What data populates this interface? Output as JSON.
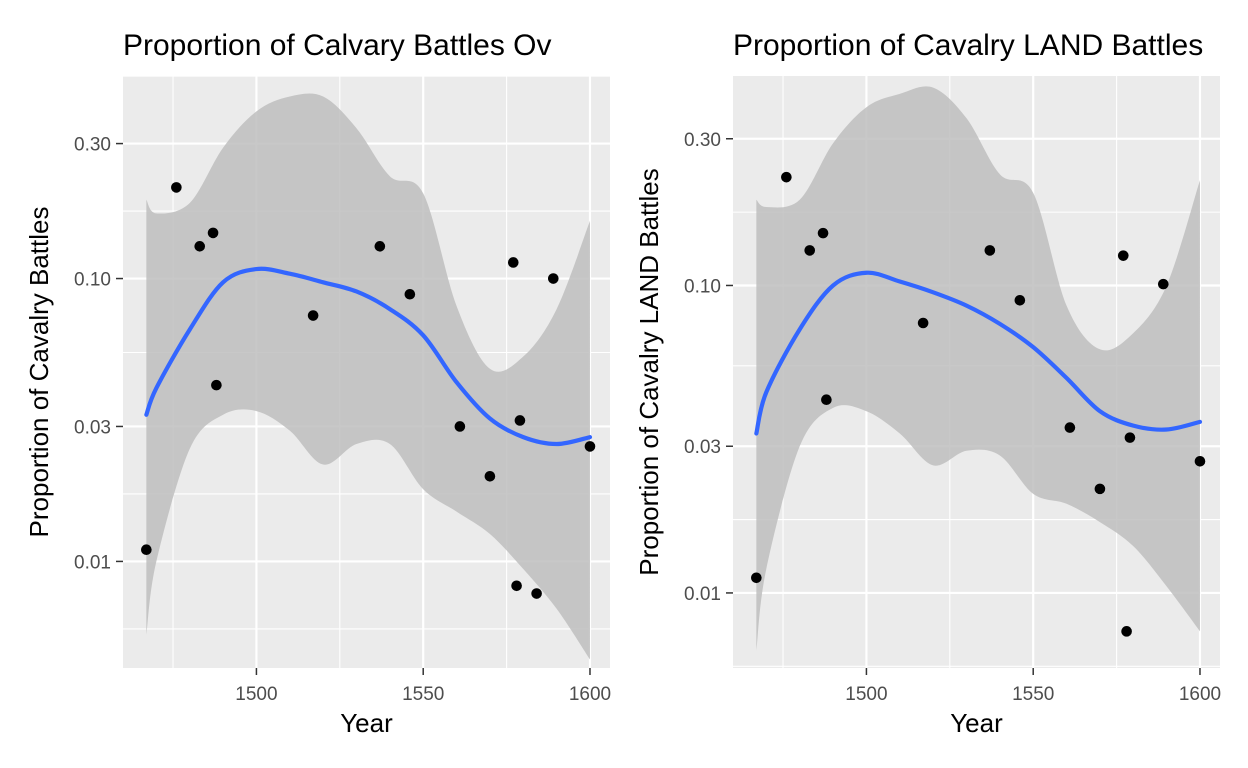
{
  "chart_data": [
    {
      "type": "scatter",
      "title": "Proportion of Calvary Battles Ov",
      "xlabel": "Year",
      "ylabel": "Proportion of Cavalry Battles",
      "x_scale": "linear",
      "y_scale": "log10",
      "xlim": [
        1460,
        1606
      ],
      "ylim": [
        0.0042,
        0.52
      ],
      "x_ticks": [
        1500,
        1550,
        1600
      ],
      "x_tick_labels": [
        "1500",
        "1550",
        "1600"
      ],
      "y_ticks": [
        0.01,
        0.03,
        0.1,
        0.3
      ],
      "y_tick_labels": [
        "0.01",
        "0.03",
        "0.10",
        "0.30"
      ],
      "grid": true,
      "legend": "none",
      "colors": {
        "panel": "#EBEBEB",
        "grid": "#FFFFFF",
        "smooth": "#3366FF",
        "ribbon": "#BEBEBE",
        "point": "#000000"
      },
      "points": [
        {
          "x": 1467,
          "y": 0.011
        },
        {
          "x": 1476,
          "y": 0.21
        },
        {
          "x": 1483,
          "y": 0.13
        },
        {
          "x": 1487,
          "y": 0.145
        },
        {
          "x": 1488,
          "y": 0.042
        },
        {
          "x": 1517,
          "y": 0.074
        },
        {
          "x": 1537,
          "y": 0.13
        },
        {
          "x": 1546,
          "y": 0.088
        },
        {
          "x": 1561,
          "y": 0.03
        },
        {
          "x": 1570,
          "y": 0.02
        },
        {
          "x": 1577,
          "y": 0.114
        },
        {
          "x": 1578,
          "y": 0.0082
        },
        {
          "x": 1579,
          "y": 0.0315
        },
        {
          "x": 1584,
          "y": 0.0077
        },
        {
          "x": 1589,
          "y": 0.1
        },
        {
          "x": 1600,
          "y": 0.0255
        }
      ],
      "smooth": {
        "x": [
          1467,
          1470,
          1480,
          1490,
          1500,
          1510,
          1520,
          1530,
          1540,
          1550,
          1560,
          1570,
          1580,
          1590,
          1600
        ],
        "y": [
          0.033,
          0.041,
          0.066,
          0.097,
          0.108,
          0.104,
          0.097,
          0.09,
          0.078,
          0.063,
          0.043,
          0.032,
          0.0275,
          0.026,
          0.0275
        ],
        "lower": [
          0.0055,
          0.01,
          0.025,
          0.033,
          0.034,
          0.029,
          0.022,
          0.026,
          0.026,
          0.018,
          0.015,
          0.0125,
          0.0094,
          0.0068,
          0.0045
        ],
        "upper": [
          0.19,
          0.17,
          0.185,
          0.29,
          0.39,
          0.44,
          0.44,
          0.34,
          0.23,
          0.2,
          0.08,
          0.048,
          0.053,
          0.078,
          0.16
        ]
      }
    },
    {
      "type": "scatter",
      "title": "Proportion of Cavalry LAND Battles",
      "xlabel": "Year",
      "ylabel": "Proportion of Cavalry LAND Battles",
      "x_scale": "linear",
      "y_scale": "log10",
      "xlim": [
        1460,
        1606
      ],
      "ylim": [
        0.0057,
        0.48
      ],
      "x_ticks": [
        1500,
        1550,
        1600
      ],
      "x_tick_labels": [
        "1500",
        "1550",
        "1600"
      ],
      "y_ticks": [
        0.01,
        0.03,
        0.1,
        0.3
      ],
      "y_tick_labels": [
        "0.01",
        "0.03",
        "0.10",
        "0.30"
      ],
      "grid": true,
      "legend": "none",
      "colors": {
        "panel": "#EBEBEB",
        "grid": "#FFFFFF",
        "smooth": "#3366FF",
        "ribbon": "#BEBEBE",
        "point": "#000000"
      },
      "points": [
        {
          "x": 1467,
          "y": 0.0112
        },
        {
          "x": 1476,
          "y": 0.225
        },
        {
          "x": 1483,
          "y": 0.13
        },
        {
          "x": 1487,
          "y": 0.148
        },
        {
          "x": 1488,
          "y": 0.0425
        },
        {
          "x": 1517,
          "y": 0.0755
        },
        {
          "x": 1537,
          "y": 0.13
        },
        {
          "x": 1546,
          "y": 0.0895
        },
        {
          "x": 1561,
          "y": 0.0345
        },
        {
          "x": 1570,
          "y": 0.0218
        },
        {
          "x": 1577,
          "y": 0.125
        },
        {
          "x": 1578,
          "y": 0.0075
        },
        {
          "x": 1579,
          "y": 0.032
        },
        {
          "x": 1589,
          "y": 0.101
        },
        {
          "x": 1600,
          "y": 0.0268
        }
      ],
      "smooth": {
        "x": [
          1467,
          1470,
          1480,
          1490,
          1500,
          1510,
          1520,
          1530,
          1540,
          1550,
          1560,
          1570,
          1580,
          1590,
          1600
        ],
        "y": [
          0.033,
          0.045,
          0.072,
          0.1,
          0.11,
          0.103,
          0.095,
          0.086,
          0.075,
          0.063,
          0.05,
          0.039,
          0.035,
          0.034,
          0.036
        ],
        "lower": [
          0.0065,
          0.012,
          0.03,
          0.04,
          0.039,
          0.033,
          0.026,
          0.029,
          0.028,
          0.021,
          0.0195,
          0.017,
          0.0142,
          0.0105,
          0.0075
        ],
        "upper": [
          0.19,
          0.18,
          0.19,
          0.29,
          0.38,
          0.42,
          0.44,
          0.35,
          0.23,
          0.2,
          0.086,
          0.062,
          0.07,
          0.1,
          0.22
        ]
      }
    }
  ]
}
